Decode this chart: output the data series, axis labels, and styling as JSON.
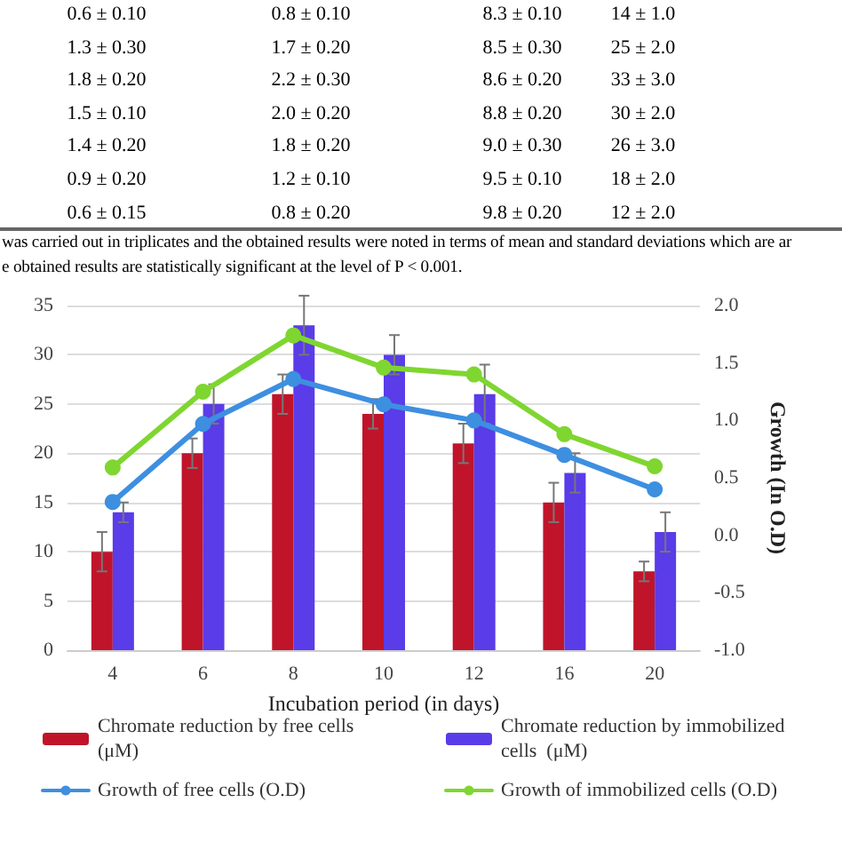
{
  "chart_data": {
    "type": "bar",
    "xlabel": "Incubation period (in days)",
    "y2label": "Growth (In O.D)",
    "categories": [
      "4",
      "6",
      "8",
      "10",
      "12",
      "16",
      "20"
    ],
    "series": [
      {
        "name": "Chromate reduction by free cells (μM)",
        "color": "#c0142a",
        "values": [
          10,
          20,
          26,
          24,
          21,
          15,
          8
        ],
        "errors": [
          2,
          1.5,
          2,
          1.5,
          2,
          2,
          1
        ]
      },
      {
        "name": "Chromate reduction by immobilized cells  (μM)",
        "color": "#5a3ce8",
        "values": [
          14,
          25,
          33,
          30,
          26,
          18,
          12
        ],
        "errors": [
          1,
          2,
          3,
          2,
          3,
          2,
          2
        ]
      },
      {
        "name": "Growth of free cells (O.D)",
        "type": "line",
        "axis": "y2",
        "color": "#3d8fe0",
        "values": [
          0.29,
          0.97,
          1.36,
          1.14,
          1.0,
          0.7,
          0.4
        ]
      },
      {
        "name": "Growth of immobilized cells (O.D)",
        "type": "line",
        "axis": "y2",
        "color": "#7fd630",
        "values": [
          0.59,
          1.25,
          1.74,
          1.46,
          1.4,
          0.88,
          0.6
        ]
      }
    ],
    "ylim": [
      0,
      35
    ],
    "yticks": [
      0,
      5,
      10,
      15,
      20,
      25,
      30,
      35
    ],
    "y2lim": [
      -1,
      2
    ],
    "y2ticks": [
      {
        "value": -1,
        "label": "-1.0"
      },
      {
        "value": -0.5,
        "label": "-0.5"
      },
      {
        "value": 0,
        "label": "0.0"
      },
      {
        "value": 0.5,
        "label": "0.5"
      },
      {
        "value": 1,
        "label": "1.0"
      },
      {
        "value": 1.5,
        "label": "1.5"
      },
      {
        "value": 2,
        "label": "2.0"
      }
    ],
    "grid": "y",
    "legend": "bottom",
    "marker": "circle",
    "annotations": [
      "0.6 ± 0.10",
      "0.8 ± 0.10",
      "8.3 ± 0.10",
      "14 ± 1.0",
      "1.3 ± 0.30",
      "1.7 ± 0.20",
      "8.5 ± 0.30",
      "25 ± 2.0",
      "1.8 ± 0.20",
      "2.2 ± 0.30",
      "8.6 ± 0.20",
      "33 ± 3.0",
      "1.5 ± 0.10",
      "2.0 ± 0.20",
      "8.8 ± 0.20",
      "30 ± 2.0",
      "1.4 ± 0.20",
      "1.8 ± 0.20",
      "9.0 ± 0.30",
      "26 ± 3.0",
      "0.9 ± 0.20",
      "1.2 ± 0.10",
      "9.5 ± 0.10",
      "18 ± 2.0",
      "0.6 ± 0.15",
      "0.8 ± 0.20",
      "9.8 ± 0.20",
      "12 ± 2.0",
      "was carried out in triplicates and the obtained results were noted in terms of mean and standard deviations which are ar",
      "e obtained results are statistically significant at the level of P < 0.001."
    ]
  }
}
